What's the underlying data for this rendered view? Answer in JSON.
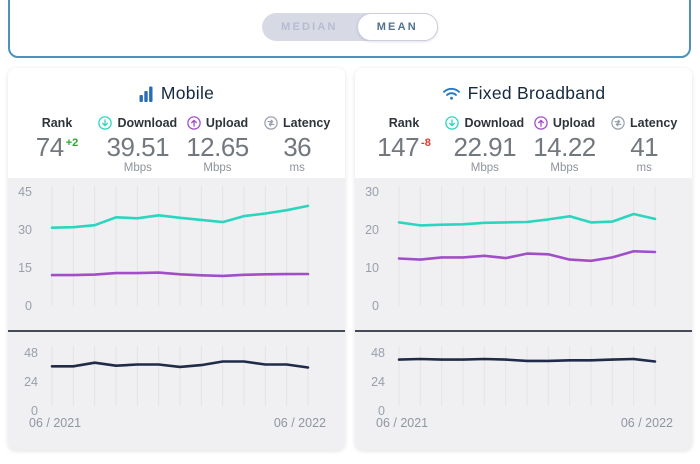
{
  "toggle": {
    "options": [
      {
        "label": "MEDIAN",
        "selected": false
      },
      {
        "label": "MEAN",
        "selected": true
      }
    ]
  },
  "colors": {
    "top_border": "#4d91bd",
    "brand_blue": "#2a6db4",
    "wifi_blue": "#2277c2",
    "download_teal": "#2bd6bf",
    "upload_purple": "#a14fc9",
    "latency_gray": "#98a0ac",
    "latency_line": "#202b49",
    "rank_up_green": "#2da52d",
    "rank_down_red": "#e03a2f"
  },
  "cards": [
    {
      "title": "Mobile",
      "stats": [
        {
          "label": "Rank",
          "value": "74",
          "delta": "+2",
          "delta_color": "#2da52d",
          "unit": ""
        },
        {
          "label": "Download",
          "value": "39.51",
          "unit": "Mbps"
        },
        {
          "label": "Upload",
          "value": "12.65",
          "unit": "Mbps"
        },
        {
          "label": "Latency",
          "value": "36",
          "unit": "ms"
        }
      ],
      "x_axis": {
        "start": "06 / 2021",
        "end": "06 / 2022"
      }
    },
    {
      "title": "Fixed Broadband",
      "stats": [
        {
          "label": "Rank",
          "value": "147",
          "delta": "-8",
          "delta_color": "#e03a2f",
          "unit": ""
        },
        {
          "label": "Download",
          "value": "22.91",
          "unit": "Mbps"
        },
        {
          "label": "Upload",
          "value": "14.22",
          "unit": "Mbps"
        },
        {
          "label": "Latency",
          "value": "41",
          "unit": "ms"
        }
      ],
      "x_axis": {
        "start": "06 / 2021",
        "end": "06 / 2022"
      }
    }
  ],
  "chart_data": [
    {
      "id": "mobile-speed",
      "type": "line",
      "x_labels": [
        "06 / 2021",
        "06 / 2022"
      ],
      "x_points": 13,
      "yticks": [
        45,
        30,
        15,
        0
      ],
      "ylim": [
        0,
        45
      ],
      "grid": "vertical",
      "series": [
        {
          "name": "Download",
          "color": "#2bd6bf",
          "values": [
            30.9,
            31.1,
            31.9,
            35.0,
            34.6,
            35.8,
            34.8,
            34.0,
            33.1,
            35.5,
            36.5,
            37.8,
            39.51
          ]
        },
        {
          "name": "Upload",
          "color": "#a14fc9",
          "values": [
            12.2,
            12.2,
            12.4,
            13.0,
            13.0,
            13.2,
            12.5,
            12.1,
            11.9,
            12.3,
            12.5,
            12.6,
            12.65
          ]
        }
      ]
    },
    {
      "id": "mobile-latency",
      "type": "line",
      "x_labels": [
        "06 / 2021",
        "06 / 2022"
      ],
      "x_points": 13,
      "yticks": [
        48,
        24,
        0
      ],
      "ylim": [
        0,
        48
      ],
      "grid": "vertical",
      "series": [
        {
          "name": "Latency",
          "color": "#202b49",
          "values": [
            37,
            37,
            40,
            37.5,
            38.5,
            38.5,
            36.5,
            38,
            41,
            41,
            38.5,
            38.5,
            36
          ]
        }
      ]
    },
    {
      "id": "fixed-speed",
      "type": "line",
      "x_labels": [
        "06 / 2021",
        "06 / 2022"
      ],
      "x_points": 13,
      "yticks": [
        30,
        20,
        10,
        0
      ],
      "ylim": [
        0,
        30
      ],
      "grid": "vertical",
      "series": [
        {
          "name": "Download",
          "color": "#2bd6bf",
          "values": [
            22.0,
            21.2,
            21.4,
            21.5,
            21.9,
            22.0,
            22.1,
            22.8,
            23.6,
            22.0,
            22.2,
            24.2,
            22.91
          ]
        },
        {
          "name": "Upload",
          "color": "#a14fc9",
          "values": [
            12.5,
            12.2,
            12.8,
            12.8,
            13.2,
            12.6,
            13.8,
            13.6,
            12.2,
            11.9,
            12.8,
            14.4,
            14.22
          ]
        }
      ]
    },
    {
      "id": "fixed-latency",
      "type": "line",
      "x_labels": [
        "06 / 2021",
        "06 / 2022"
      ],
      "x_points": 13,
      "yticks": [
        48,
        24,
        0
      ],
      "ylim": [
        0,
        48
      ],
      "grid": "vertical",
      "series": [
        {
          "name": "Latency",
          "color": "#202b49",
          "values": [
            42.5,
            43,
            42.5,
            42.5,
            43,
            42.5,
            41.5,
            41.5,
            42,
            42,
            42.5,
            43,
            41
          ]
        }
      ]
    }
  ]
}
